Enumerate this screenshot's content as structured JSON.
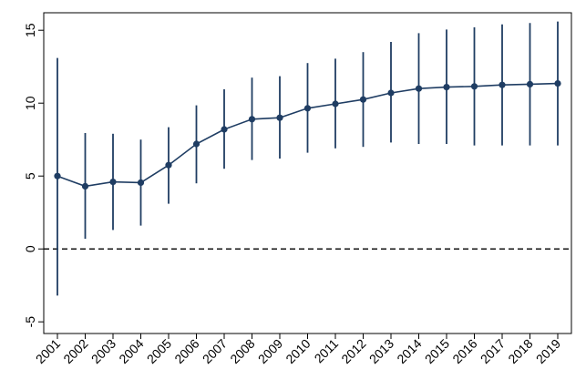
{
  "chart_data": {
    "type": "line",
    "title": "",
    "xlabel": "",
    "ylabel": "",
    "x": [
      "2001",
      "2002",
      "2003",
      "2004",
      "2005",
      "2006",
      "2007",
      "2008",
      "2009",
      "2010",
      "2011",
      "2012",
      "2013",
      "2014",
      "2015",
      "2016",
      "2017",
      "2018",
      "2019"
    ],
    "series": [
      {
        "values": [
          5.0,
          4.3,
          4.6,
          4.55,
          5.75,
          7.2,
          8.2,
          8.9,
          9.0,
          9.65,
          9.95,
          10.25,
          10.7,
          11.0,
          11.1,
          11.15,
          11.25,
          11.3,
          11.35
        ],
        "lower": [
          -3.2,
          0.7,
          1.3,
          1.6,
          3.1,
          4.5,
          5.5,
          6.1,
          6.2,
          6.6,
          6.9,
          7.0,
          7.3,
          7.2,
          7.2,
          7.1,
          7.1,
          7.1,
          7.1
        ],
        "upper": [
          13.1,
          7.95,
          7.9,
          7.5,
          8.35,
          9.85,
          10.95,
          11.75,
          11.85,
          12.75,
          13.05,
          13.5,
          14.2,
          14.8,
          15.05,
          15.2,
          15.4,
          15.5,
          15.6
        ],
        "color": "#1f3d63"
      }
    ],
    "ylim": [
      -5.8,
      16.2
    ],
    "yticks": [
      -5,
      0,
      5,
      10,
      15
    ],
    "reference_line": {
      "y": 0,
      "style": "dashed",
      "color": "#000000"
    },
    "grid": false,
    "legend": "none",
    "error_bars": true
  }
}
